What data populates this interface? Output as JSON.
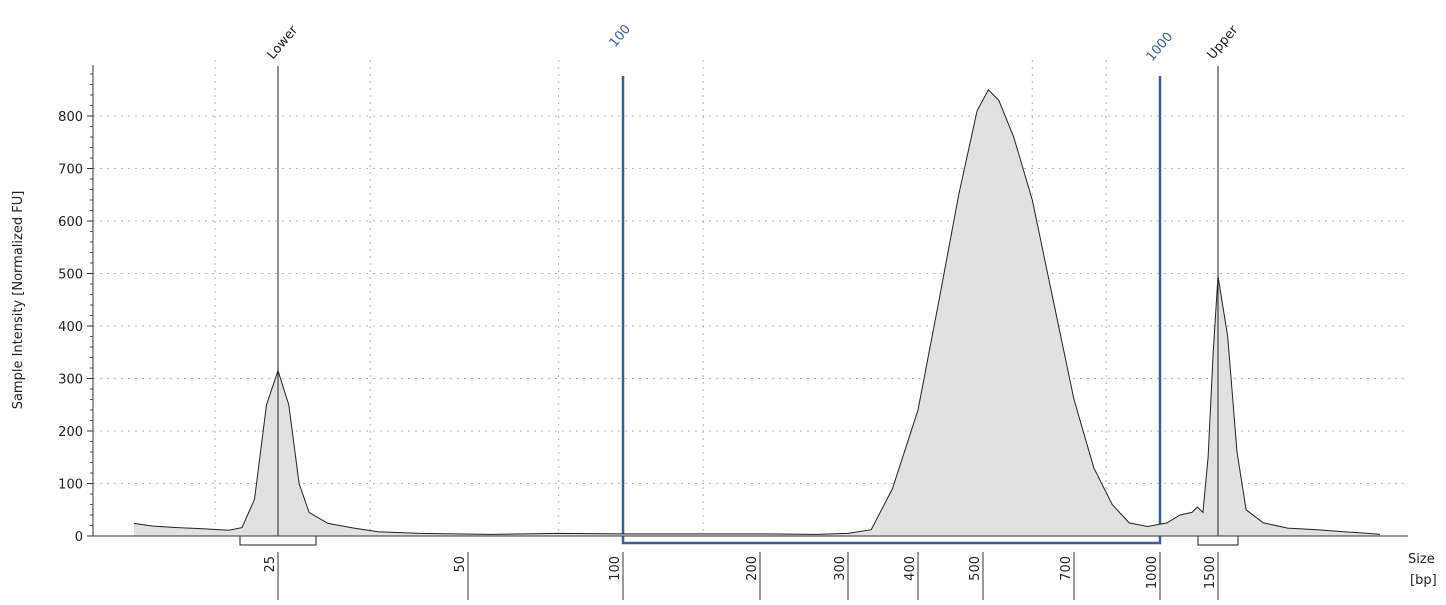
{
  "chart_data": {
    "type": "area",
    "ylabel": "Sample Intensity [Normalized FU]",
    "xlabel": "Size",
    "xunit": "[bp]",
    "ylim": [
      0,
      900
    ],
    "yticks": [
      0,
      100,
      200,
      300,
      400,
      500,
      600,
      700,
      800
    ],
    "xticks": [
      "25",
      "50",
      "100",
      "200",
      "300",
      "400",
      "500",
      "700",
      "1000",
      "1500"
    ],
    "grid": true,
    "fill_color": "#e1e1e1",
    "line_color": "#222222",
    "region_color": "#3a5f95",
    "markers": [
      {
        "label": "Lower",
        "size_bp": 25,
        "height": 315
      },
      {
        "label": "Upper",
        "size_bp": 1500,
        "height": 495
      }
    ],
    "region": {
      "from_label": "100",
      "to_label": "1000",
      "from_bp": 100,
      "to_bp": 1000
    },
    "trace": [
      {
        "x": 15,
        "y": 24
      },
      {
        "x": 16,
        "y": 19
      },
      {
        "x": 17.5,
        "y": 16
      },
      {
        "x": 19,
        "y": 14
      },
      {
        "x": 21,
        "y": 11
      },
      {
        "x": 22,
        "y": 16
      },
      {
        "x": 23,
        "y": 70
      },
      {
        "x": 24,
        "y": 250
      },
      {
        "x": 25,
        "y": 315
      },
      {
        "x": 26,
        "y": 250
      },
      {
        "x": 27,
        "y": 100
      },
      {
        "x": 28,
        "y": 45
      },
      {
        "x": 30,
        "y": 24
      },
      {
        "x": 33,
        "y": 15
      },
      {
        "x": 36,
        "y": 8
      },
      {
        "x": 42,
        "y": 5
      },
      {
        "x": 55,
        "y": 3
      },
      {
        "x": 75,
        "y": 5
      },
      {
        "x": 100,
        "y": 4
      },
      {
        "x": 150,
        "y": 4
      },
      {
        "x": 200,
        "y": 4
      },
      {
        "x": 260,
        "y": 3
      },
      {
        "x": 300,
        "y": 5
      },
      {
        "x": 330,
        "y": 12
      },
      {
        "x": 360,
        "y": 90
      },
      {
        "x": 400,
        "y": 240
      },
      {
        "x": 430,
        "y": 450
      },
      {
        "x": 460,
        "y": 650
      },
      {
        "x": 490,
        "y": 810
      },
      {
        "x": 510,
        "y": 850
      },
      {
        "x": 530,
        "y": 830
      },
      {
        "x": 560,
        "y": 760
      },
      {
        "x": 600,
        "y": 640
      },
      {
        "x": 640,
        "y": 480
      },
      {
        "x": 700,
        "y": 260
      },
      {
        "x": 760,
        "y": 130
      },
      {
        "x": 820,
        "y": 60
      },
      {
        "x": 880,
        "y": 25
      },
      {
        "x": 950,
        "y": 18
      },
      {
        "x": 1050,
        "y": 25
      },
      {
        "x": 1150,
        "y": 40
      },
      {
        "x": 1250,
        "y": 45
      },
      {
        "x": 1300,
        "y": 55
      },
      {
        "x": 1350,
        "y": 45
      },
      {
        "x": 1400,
        "y": 150
      },
      {
        "x": 1450,
        "y": 350
      },
      {
        "x": 1500,
        "y": 495
      },
      {
        "x": 1550,
        "y": 380
      },
      {
        "x": 1600,
        "y": 160
      },
      {
        "x": 1650,
        "y": 50
      },
      {
        "x": 1750,
        "y": 25
      },
      {
        "x": 1900,
        "y": 15
      },
      {
        "x": 2100,
        "y": 12
      },
      {
        "x": 2300,
        "y": 8
      },
      {
        "x": 2500,
        "y": 5
      },
      {
        "x": 2600,
        "y": 3
      }
    ]
  }
}
